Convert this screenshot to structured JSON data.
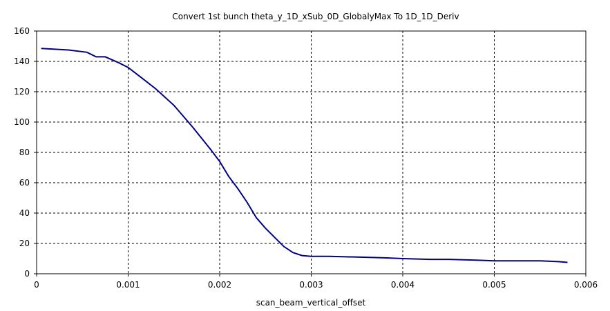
{
  "chart_data": {
    "type": "line",
    "title": "Convert 1st bunch theta_y_1D_xSub_0D_GlobalyMax To 1D_1D_Deriv",
    "xlabel": "scan_beam_vertical_offset",
    "ylabel": "",
    "xlim": [
      0,
      0.006
    ],
    "ylim": [
      0,
      160
    ],
    "x_ticks": [
      "0",
      "0.001",
      "0.002",
      "0.003",
      "0.004",
      "0.005",
      "0.006"
    ],
    "y_ticks": [
      "0",
      "20",
      "40",
      "60",
      "80",
      "100",
      "120",
      "140",
      "160"
    ],
    "grid": true,
    "line_color": "#000080",
    "series": [
      {
        "x": [
          5e-05,
          0.0002,
          0.00035,
          0.00055,
          0.00065,
          0.00075,
          0.0009,
          0.001,
          0.00115,
          0.0013,
          0.0015,
          0.0017,
          0.0019,
          0.002,
          0.0021,
          0.0022,
          0.0023,
          0.0024,
          0.0025,
          0.0026,
          0.0027,
          0.0028,
          0.0029,
          0.003,
          0.0032,
          0.0035,
          0.0038,
          0.004,
          0.0043,
          0.0045,
          0.0048,
          0.005,
          0.0052,
          0.0055,
          0.0057,
          0.0058
        ],
        "y": [
          148.5,
          148,
          147.5,
          146,
          143,
          143,
          139,
          136,
          129,
          122,
          111,
          97,
          82,
          74,
          64,
          56,
          47,
          37,
          30,
          24,
          18,
          14,
          12,
          11.5,
          11.5,
          11,
          10.5,
          10,
          9.5,
          9.5,
          9,
          8.5,
          8.5,
          8.5,
          8,
          7.5
        ]
      }
    ]
  }
}
